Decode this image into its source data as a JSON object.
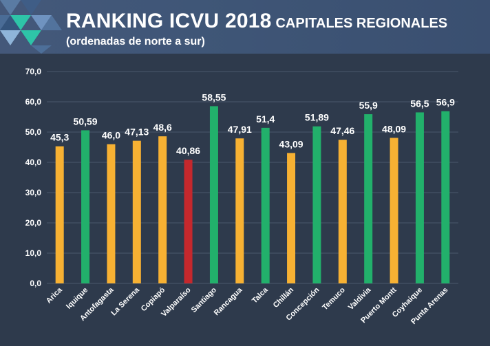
{
  "header": {
    "title": "RANKING ICVU 2018",
    "title_suffix": "CAPITALES REGIONALES",
    "subtitle": "(ordenadas de norte a sur)"
  },
  "colors": {
    "background": "#2e3a4c",
    "orange": "#f7b133",
    "green": "#22b06b",
    "red": "#c5282d",
    "grid": "#4a586c"
  },
  "chart_data": {
    "type": "bar",
    "title": "RANKING ICVU 2018 CAPITALES REGIONALES",
    "subtitle": "(ordenadas de norte a sur)",
    "xlabel": "",
    "ylabel": "",
    "ylim": [
      0,
      70
    ],
    "yticks": [
      "0,0",
      "10,0",
      "20,0",
      "30,0",
      "40,0",
      "50,0",
      "60,0",
      "70,0"
    ],
    "grid": true,
    "categories": [
      "Arica",
      "Iquique",
      "Antofagasta",
      "La Serena",
      "Copiapó",
      "Valparaíso",
      "Santiago",
      "Rancagua",
      "Talca",
      "Chillán",
      "Concepción",
      "Temuco",
      "Valdivia",
      "Puerto Montt",
      "Coyhaique",
      "Punta Arenas"
    ],
    "values": [
      45.3,
      50.59,
      46.0,
      47.13,
      48.6,
      40.86,
      58.55,
      47.91,
      51.4,
      43.09,
      51.89,
      47.46,
      55.9,
      48.09,
      56.5,
      56.9
    ],
    "value_labels": [
      "45,3",
      "50,59",
      "46,0",
      "47,13",
      "48,6",
      "40,86",
      "58,55",
      "47,91",
      "51,4",
      "43,09",
      "51,89",
      "47,46",
      "55,9",
      "48,09",
      "56,5",
      "56,9"
    ],
    "bar_colors": [
      "#f7b133",
      "#22b06b",
      "#f7b133",
      "#f7b133",
      "#f7b133",
      "#c5282d",
      "#22b06b",
      "#f7b133",
      "#22b06b",
      "#f7b133",
      "#22b06b",
      "#f7b133",
      "#22b06b",
      "#f7b133",
      "#22b06b",
      "#22b06b"
    ]
  }
}
